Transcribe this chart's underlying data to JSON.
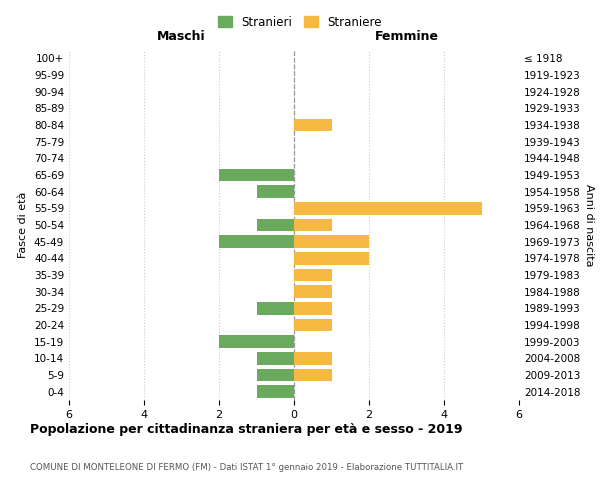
{
  "age_groups": [
    "0-4",
    "5-9",
    "10-14",
    "15-19",
    "20-24",
    "25-29",
    "30-34",
    "35-39",
    "40-44",
    "45-49",
    "50-54",
    "55-59",
    "60-64",
    "65-69",
    "70-74",
    "75-79",
    "80-84",
    "85-89",
    "90-94",
    "95-99",
    "100+"
  ],
  "birth_years": [
    "2014-2018",
    "2009-2013",
    "2004-2008",
    "1999-2003",
    "1994-1998",
    "1989-1993",
    "1984-1988",
    "1979-1983",
    "1974-1978",
    "1969-1973",
    "1964-1968",
    "1959-1963",
    "1954-1958",
    "1949-1953",
    "1944-1948",
    "1939-1943",
    "1934-1938",
    "1929-1933",
    "1924-1928",
    "1919-1923",
    "≤ 1918"
  ],
  "males": [
    1,
    1,
    1,
    2,
    0,
    1,
    0,
    0,
    0,
    2,
    1,
    0,
    1,
    2,
    0,
    0,
    0,
    0,
    0,
    0,
    0
  ],
  "females": [
    0,
    1,
    1,
    0,
    1,
    1,
    1,
    1,
    2,
    2,
    1,
    5,
    0,
    0,
    0,
    0,
    1,
    0,
    0,
    0,
    0
  ],
  "male_color": "#6aaa5e",
  "female_color": "#f5b942",
  "title": "Popolazione per cittadinanza straniera per età e sesso - 2019",
  "subtitle": "COMUNE DI MONTELEONE DI FERMO (FM) - Dati ISTAT 1° gennaio 2019 - Elaborazione TUTTITALIA.IT",
  "xlabel_left": "Maschi",
  "xlabel_right": "Femmine",
  "ylabel_left": "Fasce di età",
  "ylabel_right": "Anni di nascita",
  "legend_male": "Stranieri",
  "legend_female": "Straniere",
  "xlim": 6,
  "background_color": "#ffffff",
  "grid_color": "#cccccc"
}
